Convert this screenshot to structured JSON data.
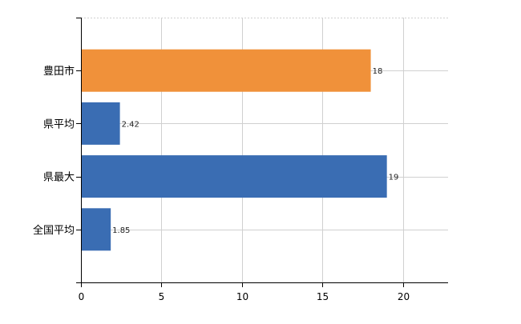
{
  "chart_data": {
    "type": "bar",
    "orientation": "horizontal",
    "title": "",
    "xlabel": "",
    "ylabel": "",
    "categories": [
      "豊田市",
      "県平均",
      "県最大",
      "全国平均"
    ],
    "values": [
      18,
      2.42,
      19,
      1.85
    ],
    "data_labels": [
      "18",
      "2.42",
      "19",
      "1.85"
    ],
    "bar_colors": [
      "#f0913a",
      "#3a6db3",
      "#3a6db3",
      "#3a6db3"
    ],
    "xlim": [
      0,
      22.8
    ],
    "xticks": [
      0,
      5,
      10,
      15,
      20
    ],
    "grid": true,
    "grid_color": "#d0d0d0",
    "legend": "none"
  }
}
